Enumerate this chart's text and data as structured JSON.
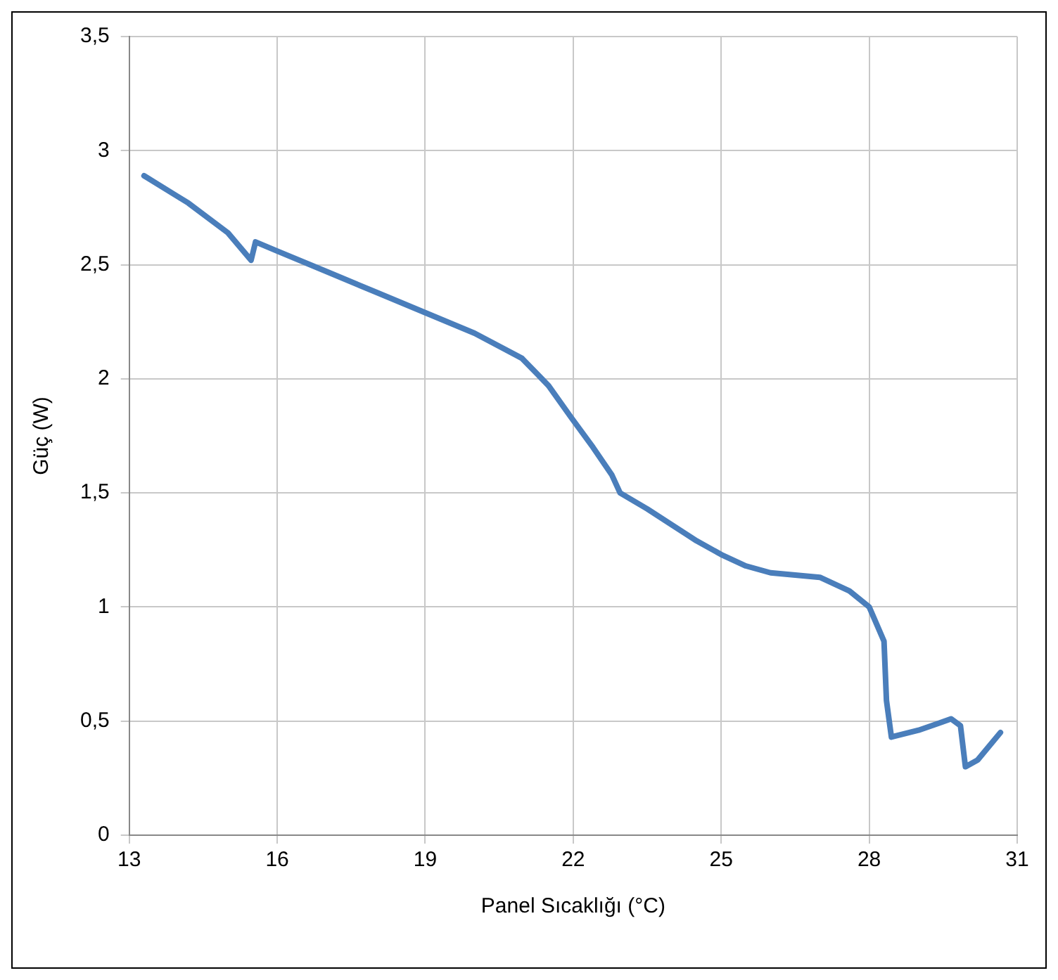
{
  "chart_data": {
    "type": "line",
    "xlabel": "Panel Sıcaklığı (°C)",
    "ylabel": "Güç (W)",
    "x": [
      13.3,
      14.2,
      15.0,
      15.47,
      15.56,
      16.0,
      17.0,
      18.0,
      19.0,
      20.0,
      20.96,
      21.5,
      21.96,
      22.4,
      22.78,
      22.95,
      23.5,
      24.0,
      24.5,
      25.0,
      25.5,
      26.0,
      26.5,
      27.0,
      27.6,
      28.0,
      28.3,
      28.35,
      28.45,
      29.0,
      29.4,
      29.66,
      29.85,
      29.95,
      30.2,
      30.66
    ],
    "series": [
      {
        "color": "#4a7ebb",
        "values": [
          2.89,
          2.77,
          2.64,
          2.52,
          2.6,
          2.56,
          2.47,
          2.38,
          2.29,
          2.2,
          2.09,
          1.97,
          1.83,
          1.7,
          1.58,
          1.5,
          1.43,
          1.36,
          1.29,
          1.23,
          1.18,
          1.15,
          1.14,
          1.13,
          1.07,
          1.0,
          0.85,
          0.59,
          0.43,
          0.46,
          0.49,
          0.51,
          0.48,
          0.3,
          0.33,
          0.45
        ]
      }
    ],
    "xlim": [
      13,
      31
    ],
    "xticks": [
      13,
      16,
      19,
      22,
      25,
      28,
      31
    ],
    "ylim": [
      0,
      3.5
    ],
    "yticks": [
      0,
      {
        "value": 0.5,
        "label": "0,5"
      },
      1,
      {
        "value": 1.5,
        "label": "1,5"
      },
      2,
      {
        "value": 2.5,
        "label": "2,5"
      },
      3,
      {
        "value": 3.5,
        "label": "3,5"
      }
    ],
    "grid": true,
    "legend": false,
    "marker": "none",
    "line_style": "solid"
  }
}
